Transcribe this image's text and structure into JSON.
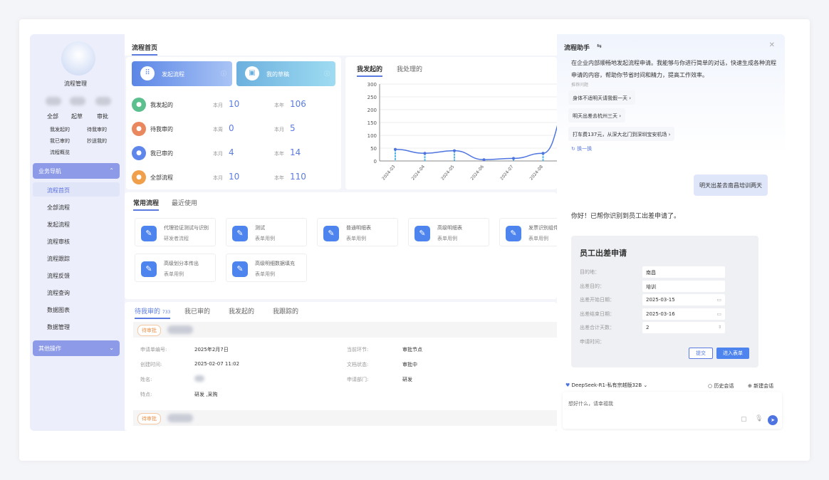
{
  "sidebar": {
    "app_name": "流程管理",
    "stats": [
      {
        "label": "全部"
      },
      {
        "label": "起草"
      },
      {
        "label": "审批"
      }
    ],
    "quick_links": [
      "我发起的",
      "待我审的",
      "我已审的",
      "抄送我的",
      "流程概览"
    ],
    "nav_group": "业务导航",
    "items": [
      "流程首页",
      "全部流程",
      "发起流程",
      "流程审核",
      "流程跟踪",
      "流程反馈",
      "流程查询",
      "数据图表",
      "数据管理"
    ],
    "other_group": "其他操作"
  },
  "main": {
    "page_tab": "流程首页",
    "actions": [
      {
        "label": "发起流程",
        "icon": "apps-icon"
      },
      {
        "label": "我的草稿",
        "icon": "draft-icon"
      }
    ],
    "summary": [
      {
        "label": "我发起的",
        "color": "#5cbf8e",
        "p1": "本月",
        "v1": "10",
        "p2": "本年",
        "v2": "106"
      },
      {
        "label": "待我审的",
        "color": "#e9885e",
        "p1": "本周",
        "v1": "0",
        "p2": "本月",
        "v2": "5"
      },
      {
        "label": "我已审的",
        "color": "#5f86ea",
        "p1": "本月",
        "v1": "4",
        "p2": "本年",
        "v2": "14"
      },
      {
        "label": "全部流程",
        "color": "#f0a04b",
        "p1": "本月",
        "v1": "10",
        "p2": "本年",
        "v2": "110"
      }
    ],
    "chart_tabs": [
      "我发起的",
      "我处理的"
    ],
    "process_tabs": [
      "常用流程",
      "最近使用"
    ],
    "processes": [
      {
        "name": "代理验证测试与识别",
        "sub": "研发者流程"
      },
      {
        "name": "测试",
        "sub": "表单用例"
      },
      {
        "name": "普通明细表",
        "sub": "表单用例"
      },
      {
        "name": "高级明细表",
        "sub": "表单用例"
      },
      {
        "name": "发票识别组件",
        "sub": "表单用例"
      },
      {
        "name": "高级划分本传出",
        "sub": "表单用例"
      },
      {
        "name": "高级明细数据填充",
        "sub": "表单用例"
      }
    ],
    "task_tabs": [
      {
        "label": "待我审的",
        "count": "733"
      },
      {
        "label": "我已审的"
      },
      {
        "label": "我发起的"
      },
      {
        "label": "我跟踪的"
      }
    ],
    "task": {
      "badge": "待审批",
      "fields_left": [
        {
          "k": "申请单编号:",
          "v": "2025年2月7日"
        },
        {
          "k": "创建时间:",
          "v": "2025-02-07 11:02"
        },
        {
          "k": "姓名:",
          "v": ""
        },
        {
          "k": "特点:",
          "v": "研发 ,采购"
        }
      ],
      "fields_right": [
        {
          "k": "当前环节:",
          "v": "审批节点"
        },
        {
          "k": "文档状态:",
          "v": "审批中"
        },
        {
          "k": "申请部门:",
          "v": "研发"
        }
      ]
    },
    "task2_badge": "待审批"
  },
  "chart_data": {
    "type": "line",
    "categories": [
      "2024-03",
      "2024-04",
      "2024-05",
      "2024-06",
      "2024-07",
      "2024-08",
      ""
    ],
    "values": [
      45,
      30,
      40,
      5,
      10,
      30,
      260
    ],
    "ylim": [
      0,
      300
    ],
    "yticks": [
      0,
      50,
      100,
      150,
      200,
      250,
      300
    ],
    "grid": true,
    "color": "#4d74e0"
  },
  "chat": {
    "title": "流程助手",
    "intro": "在企业内部顺畅地发起流程申请。我能够与你进行简单的对话，快速生成各种流程申请的内容，帮助你节省时间和精力，提高工作效率。",
    "suggest_label": "推荐问题",
    "suggestions": [
      "身体不适明天请我假一天",
      "明天出差去杭州三天",
      "打车费137元，从深大北门到深圳宝安机场"
    ],
    "refresh": "换一换",
    "user_msg": "明天出差去南昌培训两天",
    "reply": "你好！已帮你识别到员工出差申请了。",
    "form": {
      "title": "员工出差申请",
      "fields": [
        {
          "k": "目的地：",
          "v": "南昌"
        },
        {
          "k": "出差目的：",
          "v": "培训"
        },
        {
          "k": "出差开始日期：",
          "v": "2025-03-15"
        },
        {
          "k": "出差结束日期：",
          "v": "2025-03-16"
        },
        {
          "k": "出差合计天数：",
          "v": "2"
        },
        {
          "k": "申请时间：",
          "v": ""
        }
      ],
      "submit": "提交",
      "enter_form": "进入表单"
    },
    "model": "DeepSeek-R1-私有宗越版32B",
    "history": "历史会话",
    "new": "新建会话",
    "placeholder": "想好什么，请幸福我"
  }
}
